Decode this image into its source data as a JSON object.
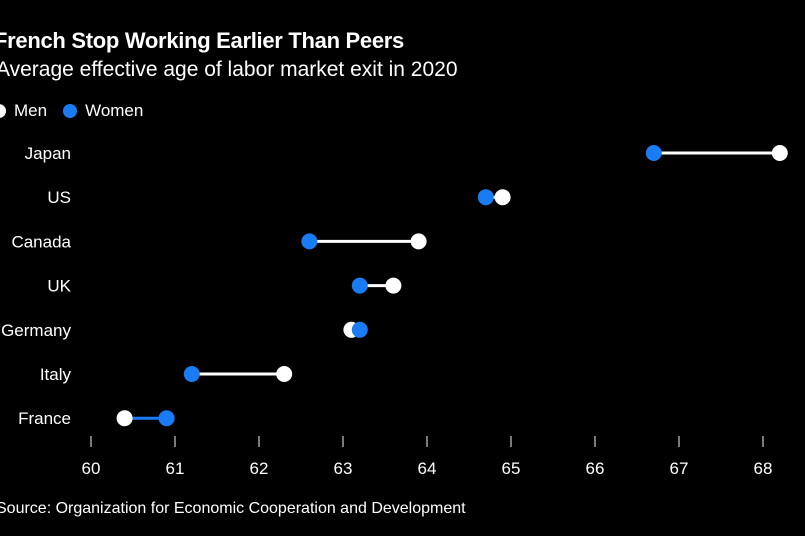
{
  "chart_data": {
    "type": "dumbbell",
    "title": "French Stop Working Earlier Than Peers",
    "subtitle": "Average effective age of labor market exit in 2020",
    "source": "Source: Organization for Economic Cooperation and Development",
    "xlabel": "",
    "ylabel": "",
    "xlim": [
      60,
      68
    ],
    "xticks": [
      "60",
      "61",
      "62",
      "63",
      "64",
      "65",
      "66",
      "67",
      "68"
    ],
    "legend": {
      "position": "top-left",
      "entries": [
        {
          "name": "Men",
          "color": "#ffffff"
        },
        {
          "name": "Women",
          "color": "#1a7cf5"
        }
      ]
    },
    "categories": [
      "Japan",
      "US",
      "Canada",
      "UK",
      "Germany",
      "Italy",
      "France"
    ],
    "series": [
      {
        "name": "Men",
        "color": "#ffffff",
        "values": [
          68.2,
          64.9,
          63.9,
          63.6,
          63.1,
          62.3,
          60.4
        ]
      },
      {
        "name": "Women",
        "color": "#1a7cf5",
        "values": [
          66.7,
          64.7,
          62.6,
          63.2,
          63.2,
          61.2,
          60.9
        ]
      }
    ]
  }
}
